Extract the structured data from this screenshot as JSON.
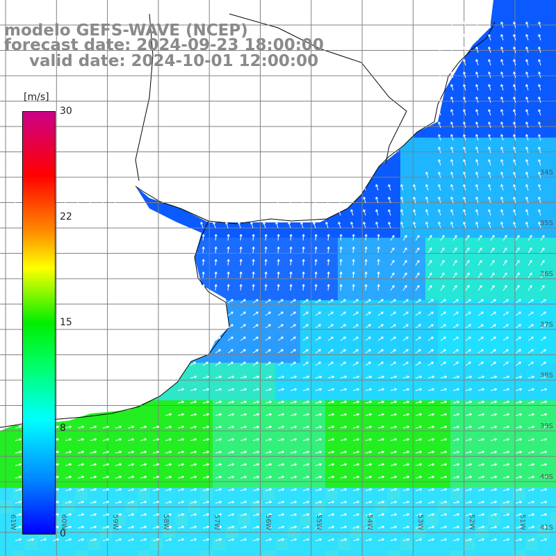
{
  "title": {
    "line1": "modelo GEFS-WAVE (NCEP)",
    "line2": "forecast date: 2024-09-23 18:00:00",
    "line3": "valid date: 2024-10-01 12:00:00"
  },
  "colorbar": {
    "unit": "[m/s]",
    "ticks": [
      "30",
      "22",
      "15",
      "8",
      "0"
    ],
    "colors": [
      "#0000ff",
      "#0088ff",
      "#00ffff",
      "#00ff66",
      "#00ee00",
      "#ffff00",
      "#ff8800",
      "#ff0000",
      "#cc0088"
    ]
  },
  "lat_labels": [
    "33S",
    "34S",
    "35S",
    "36S",
    "37S",
    "38S",
    "39S",
    "40S",
    "41S"
  ],
  "lon_labels": [
    "61W",
    "60W",
    "59W",
    "58W",
    "57W",
    "56W",
    "55W",
    "54W",
    "53W",
    "52W",
    "51W"
  ],
  "map": {
    "land_color": "#ffffff",
    "grid_color": "#808080",
    "coast_color": "#000000",
    "arrow_color": "#ffffff"
  }
}
